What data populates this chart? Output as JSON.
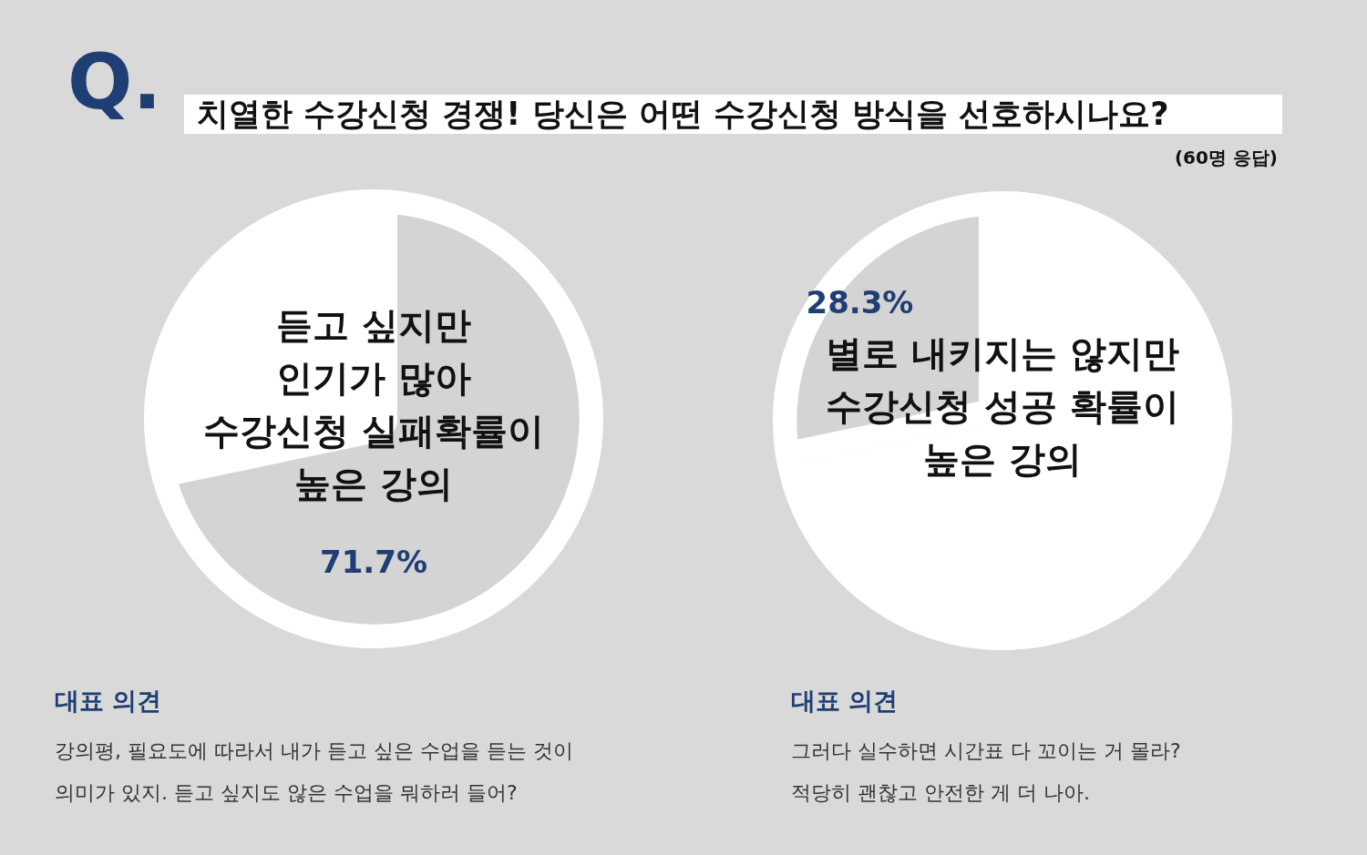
{
  "chart_data": [
    {
      "type": "other",
      "title": "치열한 수강신청 경쟁!  당신은 어떤 수강신청 방식을 선호하시나요?",
      "annotations": [
        "Q.",
        "(60명 응답)"
      ]
    },
    {
      "type": "pie",
      "categories": [
        "듣고 싶지만\n인기가 많아\n수강신청 실패확률이\n높은 강의",
        null
      ],
      "values": [
        71.7,
        28.3
      ],
      "colors": [
        "#d4d4d4",
        "#ffffff"
      ],
      "value_labels": [
        "71.7%",
        null
      ],
      "legend": false,
      "annotations": [
        "대표 의견",
        "강의평, 필요도에 따라서 내가 듣고 싶은 수업을 듣는 것이",
        "의미가 있지. 듣고 싶지도 않은 수업을 뭐하러 들어?"
      ]
    },
    {
      "type": "pie",
      "categories": [
        null,
        "별로 내키지는 않지만\n수강신청 성공 확률이\n높은 강의"
      ],
      "values": [
        71.7,
        28.3
      ],
      "colors": [
        "#ffffff",
        "#d4d4d4"
      ],
      "value_labels": [
        null,
        "28.3%"
      ],
      "legend": false,
      "annotations": [
        "대표 의견",
        "그러다 실수하면 시간표 다 꼬이는 거 몰라?",
        "적당히 괜찮고 안전한 게 더 나아."
      ]
    }
  ]
}
